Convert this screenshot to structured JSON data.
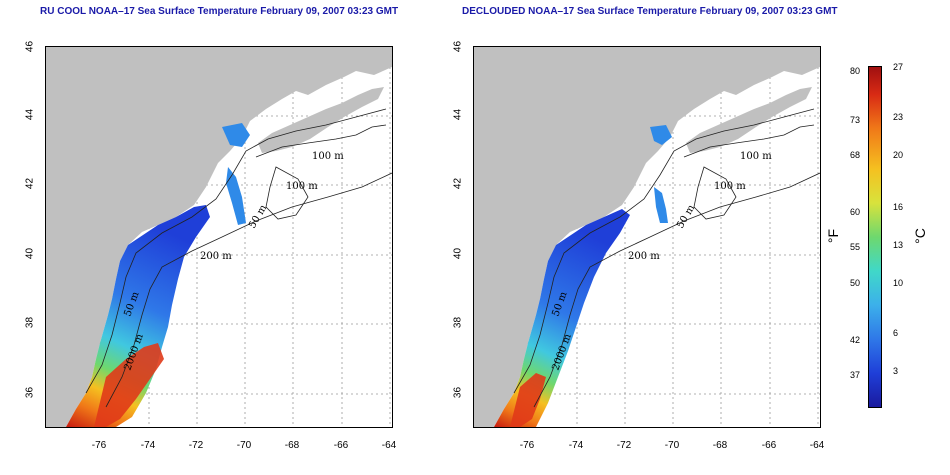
{
  "panels": [
    {
      "title": "RU COOL NOAA–17 Sea Surface Temperature February 09, 2007 03:23 GMT"
    },
    {
      "title": "DECLOUDED NOAA–17 Sea Surface Temperature February 09, 2007 03:23 GMT"
    }
  ],
  "axes": {
    "x_ticks": [
      "-76",
      "-74",
      "-72",
      "-70",
      "-68",
      "-66",
      "-64"
    ],
    "y_ticks": [
      "36",
      "38",
      "40",
      "42",
      "44",
      "46"
    ],
    "grid": "dotted"
  },
  "contour_labels": {
    "left": [
      "100 m",
      "100 m",
      "50 m",
      "200 m",
      "50 m",
      "2000 m"
    ],
    "right": [
      "100 m",
      "100 m",
      "50 m",
      "200 m",
      "50 m",
      "2000 m"
    ]
  },
  "colorbar": {
    "fahrenheit_label": "°F",
    "celsius_label": "°C",
    "fahrenheit_ticks": [
      "80",
      "73",
      "68",
      "60",
      "55",
      "50",
      "42",
      "37"
    ],
    "celsius_ticks": [
      "27",
      "23",
      "20",
      "16",
      "13",
      "10",
      "6",
      "3"
    ],
    "colors": {
      "cold": "#1a1a9e",
      "mid": "#40d8c8",
      "warm": "#f5c020",
      "hot": "#a01010"
    }
  },
  "colors": {
    "land": "#c0c0c0",
    "ocean": "#ffffff",
    "title": "#1a1aa8"
  }
}
